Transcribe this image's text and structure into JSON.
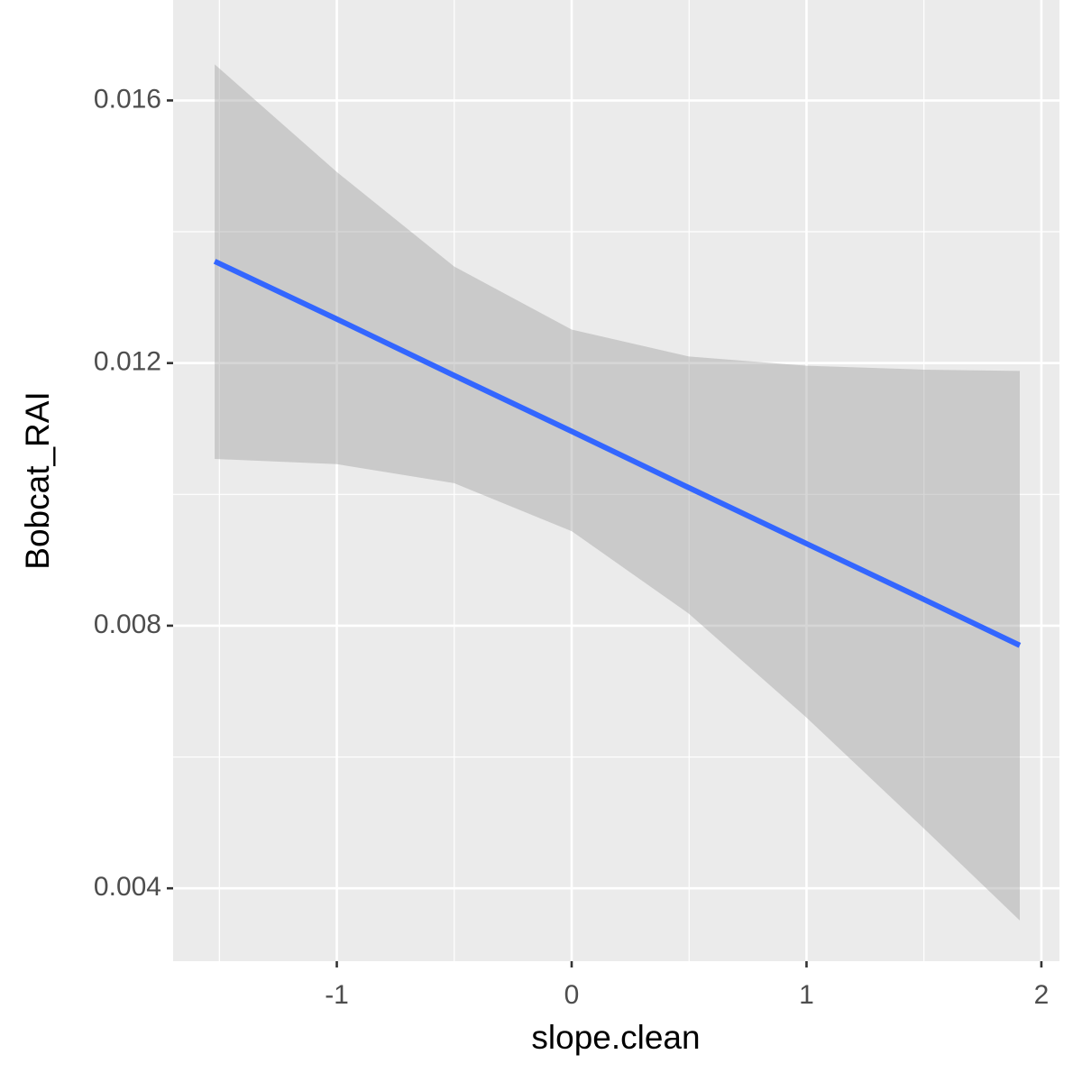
{
  "chart_data": {
    "type": "line",
    "xlabel": "slope.clean",
    "ylabel": "Bobcat_RAI",
    "x": [
      -1.52,
      -1,
      -0.5,
      0,
      0.5,
      1,
      1.5,
      1.908
    ],
    "values": [
      0.01355,
      0.01267,
      0.01181,
      0.01096,
      0.0101,
      0.00925,
      0.0084,
      0.0077
    ],
    "band_upper": [
      0.01655,
      0.01491,
      0.01347,
      0.01251,
      0.0121,
      0.01196,
      0.0119,
      0.01188
    ],
    "band_lower": [
      0.01054,
      0.01046,
      0.01017,
      0.00944,
      0.00818,
      0.0066,
      0.00491,
      0.00351
    ],
    "color": "#3366FF",
    "band_color": "#999999",
    "xlim": [
      -1.697,
      2.077
    ],
    "ylim": [
      0.00289,
      0.01753
    ],
    "xticks": [
      -1,
      0,
      1,
      2
    ],
    "yticks": [
      0.004,
      0.008,
      0.012,
      0.016
    ],
    "grid": true,
    "minor_grid": true
  }
}
